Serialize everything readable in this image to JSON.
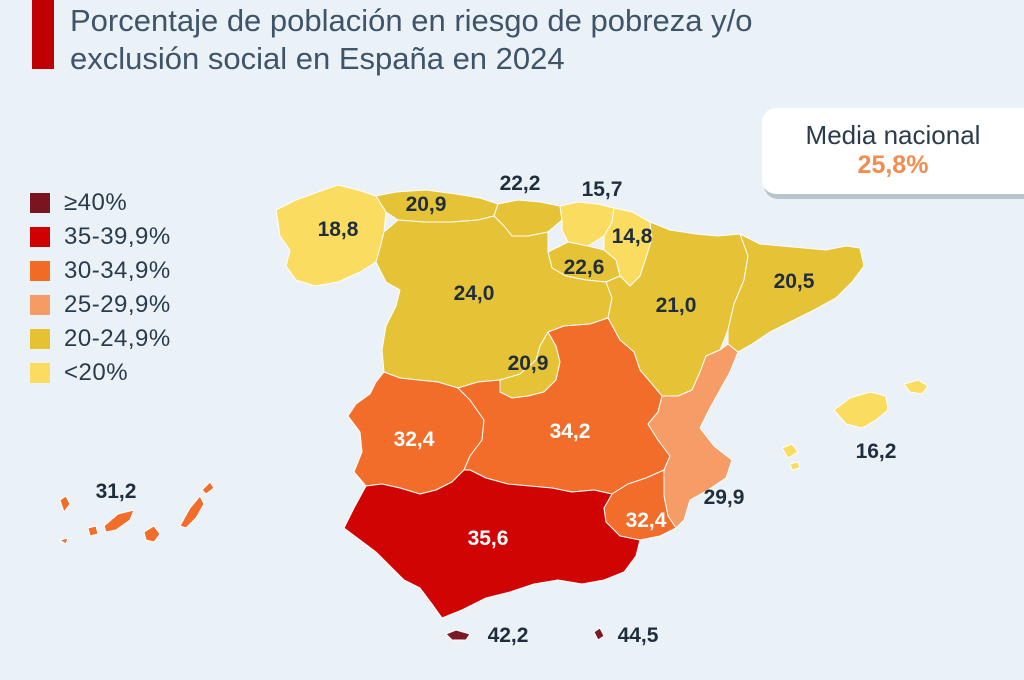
{
  "title_line1": "Porcentaje de población en riesgo de pobreza y/o",
  "title_line2": "exclusión social en España en 2024",
  "legend": [
    {
      "label": "≥40%",
      "color": "#7a1520"
    },
    {
      "label": "35-39,9%",
      "color": "#d10000"
    },
    {
      "label": "30-34,9%",
      "color": "#f26b25"
    },
    {
      "label": "25-29,9%",
      "color": "#f79b64"
    },
    {
      "label": "20-24,9%",
      "color": "#e6c233"
    },
    {
      "label": "<20%",
      "color": "#fbdc5e"
    }
  ],
  "media": {
    "label": "Media nacional",
    "value": "25,8%"
  },
  "regions": {
    "galicia": "18,8",
    "asturias": "20,9",
    "cantabria": "22,2",
    "pais_vasco": "15,7",
    "navarra": "14,8",
    "la_rioja": "22,6",
    "castilla_leon": "24,0",
    "aragon": "21,0",
    "cataluna": "20,5",
    "madrid": "20,9",
    "extremadura": "32,4",
    "castilla_la_mancha": "34,2",
    "valencia": "29,9",
    "murcia": "32,4",
    "andalucia": "35,6",
    "baleares": "16,2",
    "canarias": "31,2",
    "ceuta": "42,2",
    "melilla": "44,5"
  }
}
